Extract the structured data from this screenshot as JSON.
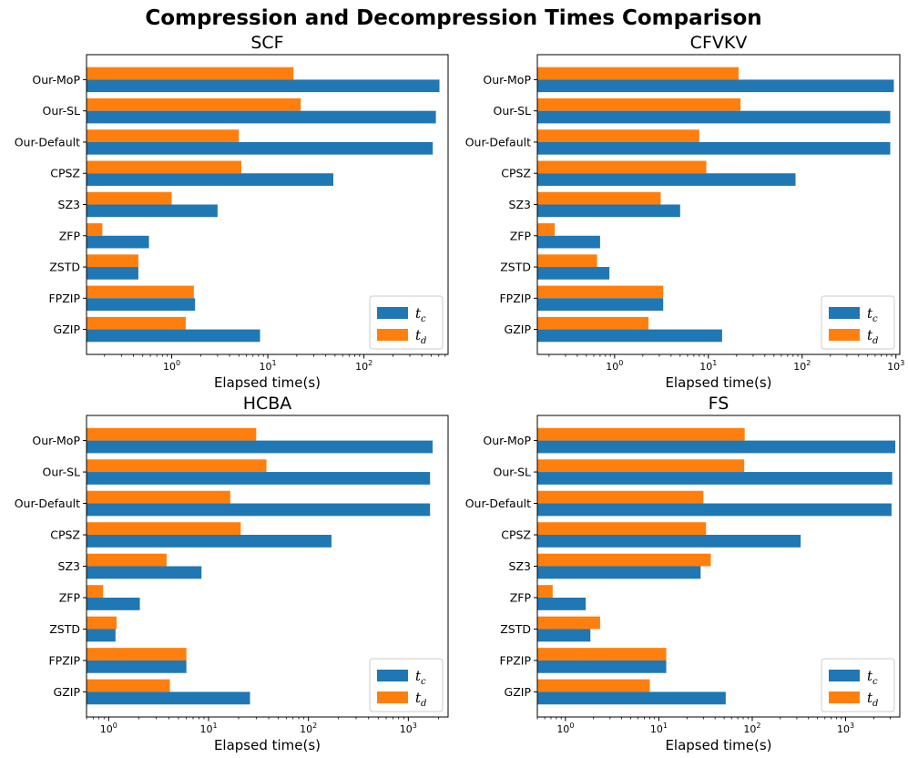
{
  "figure_title": "Compression and Decompression Times Comparison",
  "colors": {
    "tc": "#1f77b4",
    "td": "#ff7f0e"
  },
  "chart_data": [
    {
      "type": "bar",
      "orientation": "horizontal",
      "title": "SCF",
      "xlabel": "Elapsed time(s)",
      "xscale": "log",
      "xlim": [
        0.13,
        750
      ],
      "xticks": [
        {
          "base": "10",
          "exp": "0",
          "value": 1
        },
        {
          "base": "10",
          "exp": "1",
          "value": 10
        },
        {
          "base": "10",
          "exp": "2",
          "value": 100
        }
      ],
      "categories": [
        "Our-MoP",
        "Our-SL",
        "Our-Default",
        "CPSZ",
        "SZ3",
        "ZFP",
        "ZSTD",
        "FPZIP",
        "GZIP"
      ],
      "series": [
        {
          "name": "t_c",
          "label_main": "t",
          "label_sub": "c",
          "values": [
            610,
            560,
            520,
            48,
            3.0,
            0.58,
            0.45,
            1.75,
            8.3
          ]
        },
        {
          "name": "t_d",
          "label_main": "t",
          "label_sub": "d",
          "values": [
            18.5,
            22,
            5.0,
            5.3,
            1.0,
            0.19,
            0.45,
            1.7,
            1.4
          ]
        }
      ],
      "legend": "lower-right"
    },
    {
      "type": "bar",
      "orientation": "horizontal",
      "title": "CFVKV",
      "xlabel": "Elapsed time(s)",
      "xscale": "log",
      "xlim": [
        0.15,
        1100
      ],
      "xticks": [
        {
          "base": "10",
          "exp": "0",
          "value": 1
        },
        {
          "base": "10",
          "exp": "1",
          "value": 10
        },
        {
          "base": "10",
          "exp": "2",
          "value": 100
        },
        {
          "base": "10",
          "exp": "3",
          "value": 1000
        }
      ],
      "categories": [
        "Our-MoP",
        "Our-SL",
        "Our-Default",
        "CPSZ",
        "SZ3",
        "ZFP",
        "ZSTD",
        "FPZIP",
        "GZIP"
      ],
      "series": [
        {
          "name": "t_c",
          "label_main": "t",
          "label_sub": "c",
          "values": [
            950,
            870,
            870,
            85,
            5.0,
            0.7,
            0.88,
            3.3,
            14
          ]
        },
        {
          "name": "t_d",
          "label_main": "t",
          "label_sub": "d",
          "values": [
            21,
            22,
            8.0,
            9.5,
            3.1,
            0.23,
            0.65,
            3.3,
            2.3
          ]
        }
      ],
      "legend": "lower-right"
    },
    {
      "type": "bar",
      "orientation": "horizontal",
      "title": "HCBA",
      "xlabel": "Elapsed time(s)",
      "xscale": "log",
      "xlim": [
        0.6,
        2500
      ],
      "xticks": [
        {
          "base": "10",
          "exp": "0",
          "value": 1
        },
        {
          "base": "10",
          "exp": "1",
          "value": 10
        },
        {
          "base": "10",
          "exp": "2",
          "value": 100
        },
        {
          "base": "10",
          "exp": "3",
          "value": 1000
        }
      ],
      "categories": [
        "Our-MoP",
        "Our-SL",
        "Our-Default",
        "CPSZ",
        "SZ3",
        "ZFP",
        "ZSTD",
        "FPZIP",
        "GZIP"
      ],
      "series": [
        {
          "name": "t_c",
          "label_main": "t",
          "label_sub": "c",
          "values": [
            1750,
            1650,
            1650,
            170,
            8.5,
            2.05,
            1.17,
            6.0,
            26
          ]
        },
        {
          "name": "t_d",
          "label_main": "t",
          "label_sub": "d",
          "values": [
            30,
            38,
            16.5,
            21,
            3.8,
            0.88,
            1.2,
            6.0,
            4.1
          ]
        }
      ],
      "legend": "lower-right"
    },
    {
      "type": "bar",
      "orientation": "horizontal",
      "title": "FS",
      "xlabel": "Elapsed time(s)",
      "xscale": "log",
      "xlim": [
        0.5,
        3800
      ],
      "xticks": [
        {
          "base": "10",
          "exp": "0",
          "value": 1
        },
        {
          "base": "10",
          "exp": "1",
          "value": 10
        },
        {
          "base": "10",
          "exp": "2",
          "value": 100
        },
        {
          "base": "10",
          "exp": "3",
          "value": 1000
        }
      ],
      "categories": [
        "Our-MoP",
        "Our-SL",
        "Our-Default",
        "CPSZ",
        "SZ3",
        "ZFP",
        "ZSTD",
        "FPZIP",
        "GZIP"
      ],
      "series": [
        {
          "name": "t_c",
          "label_main": "t",
          "label_sub": "c",
          "values": [
            3400,
            3150,
            3100,
            330,
            28,
            1.65,
            1.85,
            12,
            52
          ]
        },
        {
          "name": "t_d",
          "label_main": "t",
          "label_sub": "d",
          "values": [
            83,
            82,
            30,
            32,
            36,
            0.73,
            2.35,
            12,
            8.0
          ]
        }
      ],
      "legend": "lower-right"
    }
  ]
}
